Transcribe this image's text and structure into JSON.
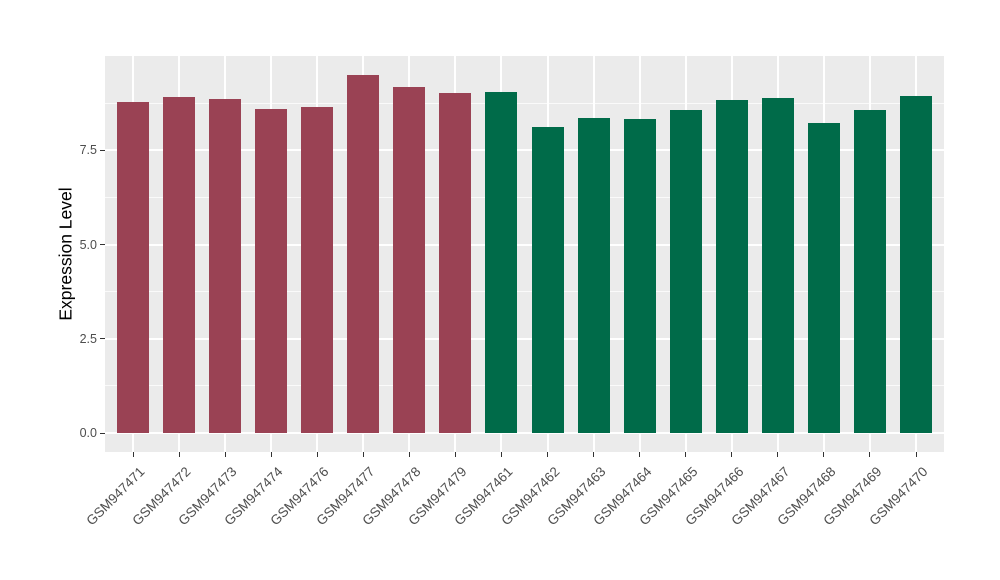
{
  "figure": {
    "background": "#FFFFFF",
    "panel_background": "#EBEBEB",
    "gridline_color": "#FFFFFF",
    "tick_color": "#333333",
    "axis_text_color": "#4D4D4D",
    "bar_color_left_group": "#9A4254",
    "bar_color_right_group": "#006B49"
  },
  "chart_data": {
    "type": "bar",
    "title": "",
    "xlabel": "",
    "ylabel": "Expression Level",
    "categories": [
      "GSM947471",
      "GSM947472",
      "GSM947473",
      "GSM947474",
      "GSM947476",
      "GSM947477",
      "GSM947478",
      "GSM947479",
      "GSM947461",
      "GSM947462",
      "GSM947463",
      "GSM947464",
      "GSM947465",
      "GSM947466",
      "GSM947467",
      "GSM947468",
      "GSM947469",
      "GSM947470"
    ],
    "values": [
      8.78,
      8.91,
      8.86,
      8.59,
      8.65,
      9.5,
      9.18,
      9.03,
      9.05,
      8.12,
      8.36,
      8.33,
      8.57,
      8.84,
      8.89,
      8.22,
      8.56,
      8.93
    ],
    "bar_colors": [
      "#9A4254",
      "#9A4254",
      "#9A4254",
      "#9A4254",
      "#9A4254",
      "#9A4254",
      "#9A4254",
      "#9A4254",
      "#006B49",
      "#006B49",
      "#006B49",
      "#006B49",
      "#006B49",
      "#006B49",
      "#006B49",
      "#006B49",
      "#006B49",
      "#006B49"
    ],
    "ylim": [
      0,
      10
    ],
    "yticks": [
      0,
      2.5,
      5,
      7.5
    ],
    "ytick_labels": [
      "0.0",
      "2.5",
      "5.0",
      "7.5"
    ],
    "yminor": [
      1.25,
      3.75,
      6.25,
      8.75
    ],
    "grid": true,
    "legend": "none"
  }
}
